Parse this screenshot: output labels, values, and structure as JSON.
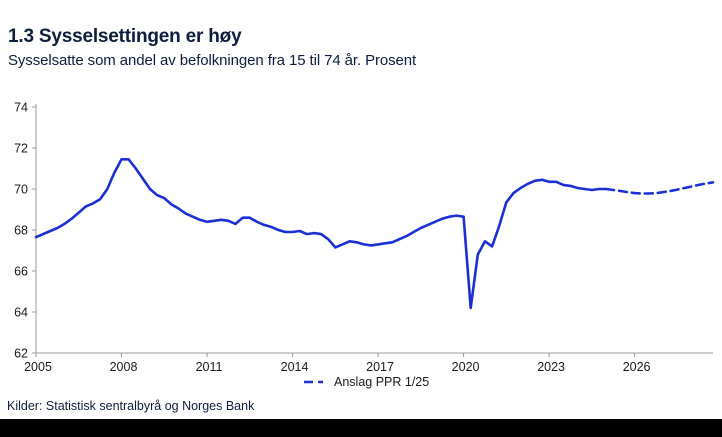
{
  "header": {
    "title": "1.3 Sysselsettingen er høy",
    "subtitle": "Sysselsatte som andel av befolkningen fra 15 til 74 år. Prosent"
  },
  "footer": {
    "source": "Kilder: Statistisk sentralbyrå og Norges Bank"
  },
  "colors": {
    "line_blue": "#1b2fd5",
    "navy_text": "#0e1c3f",
    "axis": "#999999",
    "tick_text": "#1a1a1a",
    "footer_bar": "#000000"
  },
  "chart_data": {
    "type": "line",
    "title": "1.3 Sysselsettingen er høy",
    "subtitle": "Sysselsatte som andel av befolkningen fra 15 til 74 år. Prosent",
    "ylabel": "Prosent",
    "xlim": [
      2005,
      2028.75
    ],
    "ylim": [
      62,
      74
    ],
    "x_ticks": [
      2005,
      2008,
      2011,
      2014,
      2017,
      2020,
      2023,
      2026
    ],
    "y_ticks": [
      62,
      64,
      66,
      68,
      70,
      72,
      74
    ],
    "grid": false,
    "legend": {
      "label": "Anslag PPR 1/25",
      "applies_to": "forecast",
      "position": "bottom-center",
      "style": "dashed"
    },
    "series": [
      {
        "name": "history",
        "style": "solid",
        "points": [
          [
            2005.0,
            67.65
          ],
          [
            2005.25,
            67.8
          ],
          [
            2005.5,
            67.95
          ],
          [
            2005.75,
            68.1
          ],
          [
            2006.0,
            68.3
          ],
          [
            2006.25,
            68.55
          ],
          [
            2006.5,
            68.85
          ],
          [
            2006.75,
            69.15
          ],
          [
            2007.0,
            69.3
          ],
          [
            2007.25,
            69.5
          ],
          [
            2007.5,
            70.0
          ],
          [
            2007.75,
            70.8
          ],
          [
            2008.0,
            71.45
          ],
          [
            2008.25,
            71.45
          ],
          [
            2008.5,
            71.0
          ],
          [
            2008.75,
            70.5
          ],
          [
            2009.0,
            70.0
          ],
          [
            2009.25,
            69.7
          ],
          [
            2009.5,
            69.55
          ],
          [
            2009.75,
            69.25
          ],
          [
            2010.0,
            69.05
          ],
          [
            2010.25,
            68.8
          ],
          [
            2010.5,
            68.65
          ],
          [
            2010.75,
            68.5
          ],
          [
            2011.0,
            68.4
          ],
          [
            2011.25,
            68.45
          ],
          [
            2011.5,
            68.5
          ],
          [
            2011.75,
            68.45
          ],
          [
            2012.0,
            68.3
          ],
          [
            2012.25,
            68.6
          ],
          [
            2012.5,
            68.6
          ],
          [
            2012.75,
            68.4
          ],
          [
            2013.0,
            68.25
          ],
          [
            2013.25,
            68.15
          ],
          [
            2013.5,
            68.0
          ],
          [
            2013.75,
            67.9
          ],
          [
            2014.0,
            67.9
          ],
          [
            2014.25,
            67.95
          ],
          [
            2014.5,
            67.8
          ],
          [
            2014.75,
            67.85
          ],
          [
            2015.0,
            67.8
          ],
          [
            2015.25,
            67.55
          ],
          [
            2015.5,
            67.15
          ],
          [
            2015.75,
            67.3
          ],
          [
            2016.0,
            67.45
          ],
          [
            2016.25,
            67.4
          ],
          [
            2016.5,
            67.3
          ],
          [
            2016.75,
            67.25
          ],
          [
            2017.0,
            67.3
          ],
          [
            2017.25,
            67.35
          ],
          [
            2017.5,
            67.4
          ],
          [
            2017.75,
            67.55
          ],
          [
            2018.0,
            67.7
          ],
          [
            2018.25,
            67.9
          ],
          [
            2018.5,
            68.1
          ],
          [
            2018.75,
            68.25
          ],
          [
            2019.0,
            68.4
          ],
          [
            2019.25,
            68.55
          ],
          [
            2019.5,
            68.65
          ],
          [
            2019.75,
            68.7
          ],
          [
            2020.0,
            68.65
          ],
          [
            2020.25,
            64.2
          ],
          [
            2020.5,
            66.8
          ],
          [
            2020.75,
            67.45
          ],
          [
            2021.0,
            67.2
          ],
          [
            2021.25,
            68.2
          ],
          [
            2021.5,
            69.35
          ],
          [
            2021.75,
            69.8
          ],
          [
            2022.0,
            70.05
          ],
          [
            2022.25,
            70.25
          ],
          [
            2022.5,
            70.4
          ],
          [
            2022.75,
            70.45
          ],
          [
            2023.0,
            70.35
          ],
          [
            2023.25,
            70.35
          ],
          [
            2023.5,
            70.2
          ],
          [
            2023.75,
            70.15
          ],
          [
            2024.0,
            70.05
          ],
          [
            2024.25,
            70.0
          ],
          [
            2024.5,
            69.95
          ],
          [
            2024.75,
            70.0
          ],
          [
            2025.0,
            70.0
          ]
        ]
      },
      {
        "name": "forecast",
        "style": "dashed",
        "points": [
          [
            2025.0,
            70.0
          ],
          [
            2025.25,
            69.95
          ],
          [
            2025.5,
            69.9
          ],
          [
            2025.75,
            69.85
          ],
          [
            2026.0,
            69.8
          ],
          [
            2026.25,
            69.78
          ],
          [
            2026.5,
            69.78
          ],
          [
            2026.75,
            69.8
          ],
          [
            2027.0,
            69.85
          ],
          [
            2027.25,
            69.9
          ],
          [
            2027.5,
            69.97
          ],
          [
            2027.75,
            70.05
          ],
          [
            2028.0,
            70.12
          ],
          [
            2028.25,
            70.2
          ],
          [
            2028.5,
            70.27
          ],
          [
            2028.75,
            70.32
          ]
        ]
      }
    ]
  }
}
